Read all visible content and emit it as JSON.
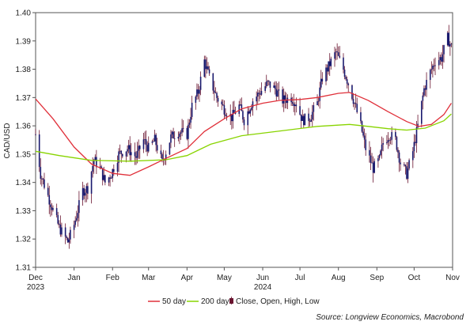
{
  "chart_data": {
    "type": "line",
    "title": "",
    "xlabel": "",
    "ylabel": "CAD/USD",
    "ylim": [
      1.31,
      1.4
    ],
    "y_ticks": [
      "1.31",
      "1.32",
      "1.33",
      "1.34",
      "1.35",
      "1.36",
      "1.37",
      "1.38",
      "1.39",
      "1.40"
    ],
    "x_range": [
      "2023-12-01",
      "2024-11-01"
    ],
    "x_ticks": [
      {
        "date": "2023-12-01",
        "label": "Dec",
        "label2": "2023"
      },
      {
        "date": "2024-01-01",
        "label": "Jan",
        "label2": ""
      },
      {
        "date": "2024-02-01",
        "label": "Feb",
        "label2": ""
      },
      {
        "date": "2024-03-01",
        "label": "Mar",
        "label2": ""
      },
      {
        "date": "2024-04-01",
        "label": "Apr",
        "label2": ""
      },
      {
        "date": "2024-05-01",
        "label": "May",
        "label2": ""
      },
      {
        "date": "2024-06-01",
        "label": "Jun",
        "label2": "2024"
      },
      {
        "date": "2024-07-01",
        "label": "Jul",
        "label2": ""
      },
      {
        "date": "2024-08-01",
        "label": "Aug",
        "label2": ""
      },
      {
        "date": "2024-09-01",
        "label": "Sep",
        "label2": ""
      },
      {
        "date": "2024-10-01",
        "label": "Oct",
        "label2": ""
      },
      {
        "date": "2024-11-01",
        "label": "Nov",
        "label2": ""
      }
    ],
    "close_anchors": [
      [
        "2023-12-01",
        1.357
      ],
      [
        "2023-12-05",
        1.343
      ],
      [
        "2023-12-12",
        1.334
      ],
      [
        "2023-12-20",
        1.324
      ],
      [
        "2023-12-27",
        1.319
      ],
      [
        "2024-01-01",
        1.325
      ],
      [
        "2024-01-08",
        1.337
      ],
      [
        "2024-01-12",
        1.338
      ],
      [
        "2024-01-17",
        1.348
      ],
      [
        "2024-01-22",
        1.345
      ],
      [
        "2024-01-26",
        1.34
      ],
      [
        "2024-01-31",
        1.343
      ],
      [
        "2024-02-06",
        1.35
      ],
      [
        "2024-02-13",
        1.352
      ],
      [
        "2024-02-20",
        1.349
      ],
      [
        "2024-02-26",
        1.355
      ],
      [
        "2024-03-01",
        1.352
      ],
      [
        "2024-03-06",
        1.355
      ],
      [
        "2024-03-12",
        1.347
      ],
      [
        "2024-03-19",
        1.356
      ],
      [
        "2024-03-25",
        1.358
      ],
      [
        "2024-04-01",
        1.357
      ],
      [
        "2024-04-05",
        1.367
      ],
      [
        "2024-04-10",
        1.372
      ],
      [
        "2024-04-15",
        1.383
      ],
      [
        "2024-04-19",
        1.377
      ],
      [
        "2024-04-25",
        1.37
      ],
      [
        "2024-05-01",
        1.366
      ],
      [
        "2024-05-07",
        1.363
      ],
      [
        "2024-05-13",
        1.367
      ],
      [
        "2024-05-17",
        1.362
      ],
      [
        "2024-05-24",
        1.369
      ],
      [
        "2024-05-30",
        1.372
      ],
      [
        "2024-06-05",
        1.375
      ],
      [
        "2024-06-11",
        1.373
      ],
      [
        "2024-06-17",
        1.369
      ],
      [
        "2024-06-24",
        1.37
      ],
      [
        "2024-06-28",
        1.368
      ],
      [
        "2024-07-03",
        1.362
      ],
      [
        "2024-07-09",
        1.363
      ],
      [
        "2024-07-15",
        1.368
      ],
      [
        "2024-07-19",
        1.377
      ],
      [
        "2024-07-24",
        1.381
      ],
      [
        "2024-07-30",
        1.386
      ],
      [
        "2024-08-05",
        1.38
      ],
      [
        "2024-08-09",
        1.375
      ],
      [
        "2024-08-14",
        1.368
      ],
      [
        "2024-08-19",
        1.36
      ],
      [
        "2024-08-23",
        1.352
      ],
      [
        "2024-08-29",
        1.345
      ],
      [
        "2024-09-03",
        1.348
      ],
      [
        "2024-09-06",
        1.354
      ],
      [
        "2024-09-11",
        1.357
      ],
      [
        "2024-09-16",
        1.355
      ],
      [
        "2024-09-20",
        1.347
      ],
      [
        "2024-09-25",
        1.343
      ],
      [
        "2024-09-30",
        1.351
      ],
      [
        "2024-10-04",
        1.36
      ],
      [
        "2024-10-09",
        1.373
      ],
      [
        "2024-10-14",
        1.379
      ],
      [
        "2024-10-18",
        1.383
      ],
      [
        "2024-10-23",
        1.384
      ],
      [
        "2024-10-28",
        1.391
      ],
      [
        "2024-10-31",
        1.388
      ]
    ],
    "series": [
      {
        "name": "50 day",
        "color": "#e0303a",
        "points": [
          [
            "2023-12-01",
            1.3695
          ],
          [
            "2023-12-15",
            1.3625
          ],
          [
            "2024-01-01",
            1.3525
          ],
          [
            "2024-01-15",
            1.3465
          ],
          [
            "2024-02-01",
            1.3432
          ],
          [
            "2024-02-15",
            1.3425
          ],
          [
            "2024-03-01",
            1.3455
          ],
          [
            "2024-03-15",
            1.3485
          ],
          [
            "2024-04-01",
            1.352
          ],
          [
            "2024-04-15",
            1.358
          ],
          [
            "2024-05-01",
            1.3625
          ],
          [
            "2024-05-15",
            1.366
          ],
          [
            "2024-06-01",
            1.368
          ],
          [
            "2024-06-15",
            1.369
          ],
          [
            "2024-07-01",
            1.3693
          ],
          [
            "2024-07-15",
            1.37
          ],
          [
            "2024-08-01",
            1.3715
          ],
          [
            "2024-08-10",
            1.3718
          ],
          [
            "2024-08-25",
            1.369
          ],
          [
            "2024-09-10",
            1.365
          ],
          [
            "2024-09-25",
            1.3615
          ],
          [
            "2024-10-05",
            1.3598
          ],
          [
            "2024-10-15",
            1.3605
          ],
          [
            "2024-10-25",
            1.364
          ],
          [
            "2024-10-31",
            1.368
          ]
        ]
      },
      {
        "name": "200 day",
        "color": "#88d400",
        "points": [
          [
            "2023-12-01",
            1.351
          ],
          [
            "2023-12-20",
            1.3495
          ],
          [
            "2024-01-15",
            1.3478
          ],
          [
            "2024-02-15",
            1.3475
          ],
          [
            "2024-03-15",
            1.348
          ],
          [
            "2024-04-01",
            1.3495
          ],
          [
            "2024-04-20",
            1.3535
          ],
          [
            "2024-05-15",
            1.3565
          ],
          [
            "2024-06-15",
            1.3582
          ],
          [
            "2024-07-15",
            1.3598
          ],
          [
            "2024-08-10",
            1.3605
          ],
          [
            "2024-08-25",
            1.3598
          ],
          [
            "2024-09-10",
            1.359
          ],
          [
            "2024-09-25",
            1.3585
          ],
          [
            "2024-10-10",
            1.3592
          ],
          [
            "2024-10-25",
            1.3618
          ],
          [
            "2024-10-31",
            1.3642
          ]
        ]
      },
      {
        "name": "Close, Open, High, Low",
        "color": "#6a1530"
      }
    ],
    "legend": {
      "placement": "bottom",
      "items": [
        "50 day",
        "200 day",
        "Close, Open, High, Low"
      ]
    },
    "source": "Source: Longview Economics, Macrobond",
    "grid": false,
    "candle_colors": {
      "body": "#1a1a6e",
      "wick": "#6a1530"
    }
  }
}
